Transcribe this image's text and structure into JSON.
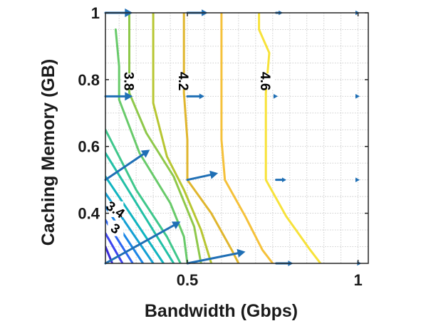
{
  "chart_data": {
    "type": "contour",
    "xlabel": "Bandwidth (Gbps)",
    "ylabel": "Caching Memory (GB)",
    "xlim": [
      0.26,
      1.03
    ],
    "ylim": [
      0.25,
      1.0
    ],
    "xticks": [
      {
        "v": 0.5,
        "label": "0.5"
      },
      {
        "v": 1,
        "label": "1"
      }
    ],
    "yticks": [
      {
        "v": 0.4,
        "label": "0.4"
      },
      {
        "v": 0.6,
        "label": "0.6"
      },
      {
        "v": 0.8,
        "label": "0.8"
      },
      {
        "v": 1,
        "label": "1"
      }
    ],
    "grid": true,
    "contours": [
      {
        "level": 2.9,
        "color": "#3a2ad6",
        "points": [
          [
            0.26,
            0.3
          ],
          [
            0.28,
            0.25
          ]
        ]
      },
      {
        "level": 3.0,
        "color": "#3d43ee",
        "points": [
          [
            0.26,
            0.34
          ],
          [
            0.31,
            0.25
          ]
        ]
      },
      {
        "level": 3.1,
        "color": "#2c66f2",
        "points": [
          [
            0.26,
            0.38
          ],
          [
            0.34,
            0.25
          ]
        ]
      },
      {
        "level": 3.2,
        "color": "#1a86e6",
        "points": [
          [
            0.26,
            0.42
          ],
          [
            0.37,
            0.25
          ]
        ]
      },
      {
        "level": 3.3,
        "color": "#14a0d4",
        "points": [
          [
            0.26,
            0.46
          ],
          [
            0.4,
            0.25
          ]
        ]
      },
      {
        "level": 3.4,
        "color": "#10b4c0",
        "points": [
          [
            0.26,
            0.51
          ],
          [
            0.43,
            0.25
          ]
        ]
      },
      {
        "level": 3.5,
        "color": "#22c0a6",
        "points": [
          [
            0.26,
            0.58
          ],
          [
            0.46,
            0.25
          ]
        ]
      },
      {
        "level": 3.6,
        "color": "#3fc78c",
        "points": [
          [
            0.26,
            0.65
          ],
          [
            0.35,
            0.47
          ],
          [
            0.44,
            0.33
          ],
          [
            0.48,
            0.25
          ]
        ]
      },
      {
        "level": 3.7,
        "color": "#68ca6a",
        "points": [
          [
            0.29,
            0.95
          ],
          [
            0.3,
            0.84
          ],
          [
            0.3,
            0.74
          ],
          [
            0.36,
            0.58
          ],
          [
            0.45,
            0.43
          ],
          [
            0.49,
            0.33
          ],
          [
            0.5,
            0.25
          ]
        ]
      },
      {
        "level": 3.8,
        "color": "#8ec84a",
        "points": [
          [
            0.33,
            1.0
          ],
          [
            0.33,
            0.86
          ],
          [
            0.33,
            0.76
          ],
          [
            0.38,
            0.64
          ],
          [
            0.46,
            0.51
          ],
          [
            0.52,
            0.36
          ],
          [
            0.54,
            0.25
          ]
        ]
      },
      {
        "level": 4.0,
        "color": "#b7c632",
        "points": [
          [
            0.4,
            1.0
          ],
          [
            0.4,
            0.85
          ],
          [
            0.4,
            0.73
          ],
          [
            0.44,
            0.57
          ],
          [
            0.49,
            0.47
          ],
          [
            0.54,
            0.35
          ],
          [
            0.57,
            0.25
          ]
        ]
      },
      {
        "level": 4.2,
        "color": "#e0b62e",
        "points": [
          [
            0.49,
            1.0
          ],
          [
            0.49,
            0.86
          ],
          [
            0.49,
            0.76
          ],
          [
            0.5,
            0.62
          ],
          [
            0.5,
            0.5
          ],
          [
            0.57,
            0.4
          ],
          [
            0.63,
            0.29
          ],
          [
            0.65,
            0.25
          ]
        ]
      },
      {
        "level": 4.4,
        "color": "#f5c13a",
        "points": [
          [
            0.6,
            1.0
          ],
          [
            0.6,
            0.87
          ],
          [
            0.6,
            0.73
          ],
          [
            0.6,
            0.62
          ],
          [
            0.61,
            0.5
          ],
          [
            0.67,
            0.39
          ],
          [
            0.72,
            0.29
          ],
          [
            0.75,
            0.25
          ]
        ]
      },
      {
        "level": 4.6,
        "color": "#f7e23a",
        "points": [
          [
            0.71,
            1.0
          ],
          [
            0.71,
            0.95
          ],
          [
            0.74,
            0.88
          ],
          [
            0.73,
            0.76
          ],
          [
            0.73,
            0.62
          ],
          [
            0.73,
            0.5
          ],
          [
            0.79,
            0.39
          ],
          [
            0.86,
            0.29
          ],
          [
            0.89,
            0.25
          ]
        ]
      }
    ],
    "contour_labels": [
      {
        "text": "3.8",
        "x": 0.33,
        "y": 0.795,
        "rotation": 90
      },
      {
        "text": "4.2",
        "x": 0.49,
        "y": 0.795,
        "rotation": 90
      },
      {
        "text": "4.6",
        "x": 0.73,
        "y": 0.795,
        "rotation": 90
      },
      {
        "text": "3.4",
        "x": 0.29,
        "y": 0.412,
        "rotation": 35
      },
      {
        "text": "3",
        "x": 0.29,
        "y": 0.355,
        "rotation": 35
      }
    ],
    "quiver": {
      "color": "#1f6fb5",
      "arrows": [
        {
          "x": 0.26,
          "y": 1.0,
          "dx": 0.08,
          "dy": 0.0
        },
        {
          "x": 0.5,
          "y": 1.0,
          "dx": 0.06,
          "dy": 0.0
        },
        {
          "x": 0.76,
          "y": 1.0,
          "dx": 0.02,
          "dy": 0.0
        },
        {
          "x": 1.0,
          "y": 1.0,
          "dx": 0.005,
          "dy": 0.0
        },
        {
          "x": 0.26,
          "y": 0.75,
          "dx": 0.08,
          "dy": 0.0
        },
        {
          "x": 0.5,
          "y": 0.75,
          "dx": 0.05,
          "dy": 0.0
        },
        {
          "x": 0.76,
          "y": 0.75,
          "dx": 0.005,
          "dy": 0.0
        },
        {
          "x": 1.0,
          "y": 0.75,
          "dx": 0.005,
          "dy": 0.0
        },
        {
          "x": 0.26,
          "y": 0.5,
          "dx": 0.13,
          "dy": 0.09
        },
        {
          "x": 0.5,
          "y": 0.5,
          "dx": 0.09,
          "dy": 0.02
        },
        {
          "x": 0.76,
          "y": 0.5,
          "dx": 0.03,
          "dy": 0.0
        },
        {
          "x": 1.0,
          "y": 0.5,
          "dx": 0.005,
          "dy": 0.0
        },
        {
          "x": 0.26,
          "y": 0.25,
          "dx": 0.22,
          "dy": 0.125
        },
        {
          "x": 0.5,
          "y": 0.25,
          "dx": 0.17,
          "dy": 0.035
        },
        {
          "x": 0.76,
          "y": 0.25,
          "dx": 0.05,
          "dy": 0.0
        },
        {
          "x": 1.0,
          "y": 0.25,
          "dx": 0.01,
          "dy": 0.0
        }
      ]
    }
  }
}
